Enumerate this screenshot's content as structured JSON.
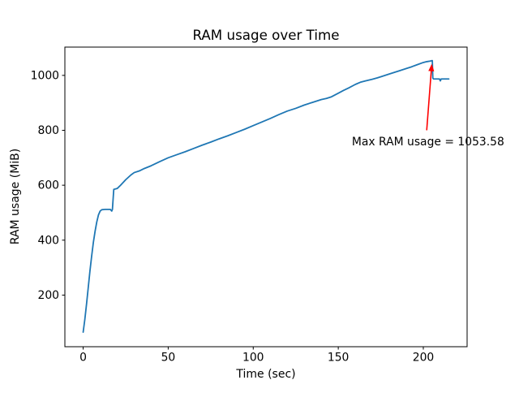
{
  "window": {
    "background_color": "#ffffff"
  },
  "chart_data": {
    "type": "line",
    "title": "RAM usage over Time",
    "xlabel": "Time (sec)",
    "ylabel": "RAM usage (MiB)",
    "line_color": "#1f77b4",
    "axis_color": "#000000",
    "grid": false,
    "legend": null,
    "xlim": [
      -10.75,
      225.75
    ],
    "ylim": [
      12,
      1103
    ],
    "xticks": [
      0,
      50,
      100,
      150,
      200
    ],
    "yticks": [
      200,
      400,
      600,
      800,
      1000
    ],
    "max_value": 1053.58,
    "series": [
      {
        "name": "RAM usage",
        "points": [
          [
            0,
            65
          ],
          [
            1,
            112
          ],
          [
            2,
            168
          ],
          [
            3,
            228
          ],
          [
            4,
            288
          ],
          [
            5,
            342
          ],
          [
            6,
            392
          ],
          [
            7,
            432
          ],
          [
            8,
            466
          ],
          [
            9,
            492
          ],
          [
            10,
            506
          ],
          [
            11,
            511
          ],
          [
            13,
            512
          ],
          [
            16,
            512
          ],
          [
            16.8,
            506
          ],
          [
            17.2,
            512
          ],
          [
            18,
            585
          ],
          [
            20,
            588
          ],
          [
            22,
            600
          ],
          [
            25,
            620
          ],
          [
            28,
            637
          ],
          [
            30,
            646
          ],
          [
            33,
            652
          ],
          [
            36,
            661
          ],
          [
            40,
            671
          ],
          [
            45,
            686
          ],
          [
            50,
            700
          ],
          [
            55,
            711
          ],
          [
            60,
            722
          ],
          [
            65,
            734
          ],
          [
            70,
            746
          ],
          [
            75,
            757
          ],
          [
            80,
            769
          ],
          [
            85,
            780
          ],
          [
            90,
            792
          ],
          [
            95,
            804
          ],
          [
            100,
            817
          ],
          [
            105,
            830
          ],
          [
            110,
            843
          ],
          [
            115,
            857
          ],
          [
            120,
            870
          ],
          [
            125,
            880
          ],
          [
            130,
            892
          ],
          [
            135,
            902
          ],
          [
            140,
            912
          ],
          [
            143,
            916
          ],
          [
            146,
            922
          ],
          [
            150,
            935
          ],
          [
            153,
            945
          ],
          [
            156,
            954
          ],
          [
            160,
            967
          ],
          [
            163,
            975
          ],
          [
            166,
            980
          ],
          [
            170,
            986
          ],
          [
            173,
            991
          ],
          [
            176,
            997
          ],
          [
            180,
            1005
          ],
          [
            183,
            1011
          ],
          [
            186,
            1017
          ],
          [
            190,
            1025
          ],
          [
            193,
            1031
          ],
          [
            196,
            1038
          ],
          [
            200,
            1047
          ],
          [
            202,
            1050
          ],
          [
            204,
            1052
          ],
          [
            205,
            1053.58
          ],
          [
            205.3,
            1053.58
          ],
          [
            205.6,
            990
          ],
          [
            206,
            987
          ],
          [
            208,
            987
          ],
          [
            209.5,
            987
          ],
          [
            210,
            980
          ],
          [
            210.5,
            987
          ],
          [
            215,
            987
          ]
        ]
      }
    ],
    "annotation": {
      "text": "Max RAM usage = 1053.58",
      "color": "#ff0000",
      "text_xy": [
        158,
        745
      ],
      "arrow_tail_xy": [
        202,
        800
      ],
      "arrow_head_xy": [
        205,
        1042
      ]
    }
  }
}
